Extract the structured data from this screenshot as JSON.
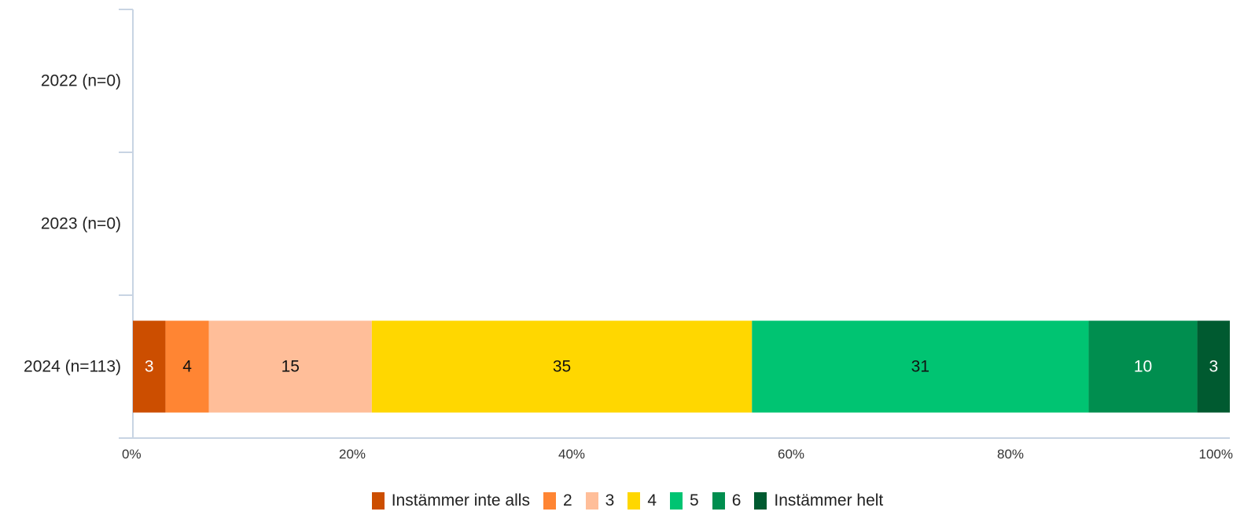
{
  "chart_data": {
    "type": "bar",
    "orientation": "horizontal",
    "stacked": "percent",
    "categories": [
      "2022 (n=0)",
      "2023 (n=0)",
      "2024 (n=113)"
    ],
    "series": [
      {
        "name": "Instämmer inte alls",
        "color": "#cc4e00",
        "label_color": "#ffffff",
        "values": [
          0,
          0,
          3
        ]
      },
      {
        "name": "2",
        "color": "#ff8533",
        "label_color": "#111111",
        "values": [
          0,
          0,
          4
        ]
      },
      {
        "name": "3",
        "color": "#ffbe99",
        "label_color": "#111111",
        "values": [
          0,
          0,
          15
        ]
      },
      {
        "name": "4",
        "color": "#ffd700",
        "label_color": "#111111",
        "values": [
          0,
          0,
          35
        ]
      },
      {
        "name": "5",
        "color": "#00c472",
        "label_color": "#111111",
        "values": [
          0,
          0,
          31
        ]
      },
      {
        "name": "6",
        "color": "#008e4f",
        "label_color": "#ffffff",
        "values": [
          0,
          0,
          10
        ]
      },
      {
        "name": "Instämmer helt",
        "color": "#005a30",
        "label_color": "#ffffff",
        "values": [
          0,
          0,
          3
        ]
      }
    ],
    "data_labels": [
      [],
      [],
      [
        "3",
        "4",
        "15",
        "35",
        "31",
        "10",
        "3"
      ]
    ],
    "xlim": [
      0,
      100
    ],
    "x_ticks": [
      "0%",
      "20%",
      "40%",
      "60%",
      "80%",
      "100%"
    ],
    "xlabel": "",
    "ylabel": "",
    "title": "",
    "grid": false,
    "legend_position": "bottom"
  },
  "colors": {
    "axis": "#c8d4e3",
    "tick_text": "#333333",
    "category_text": "#222222"
  }
}
